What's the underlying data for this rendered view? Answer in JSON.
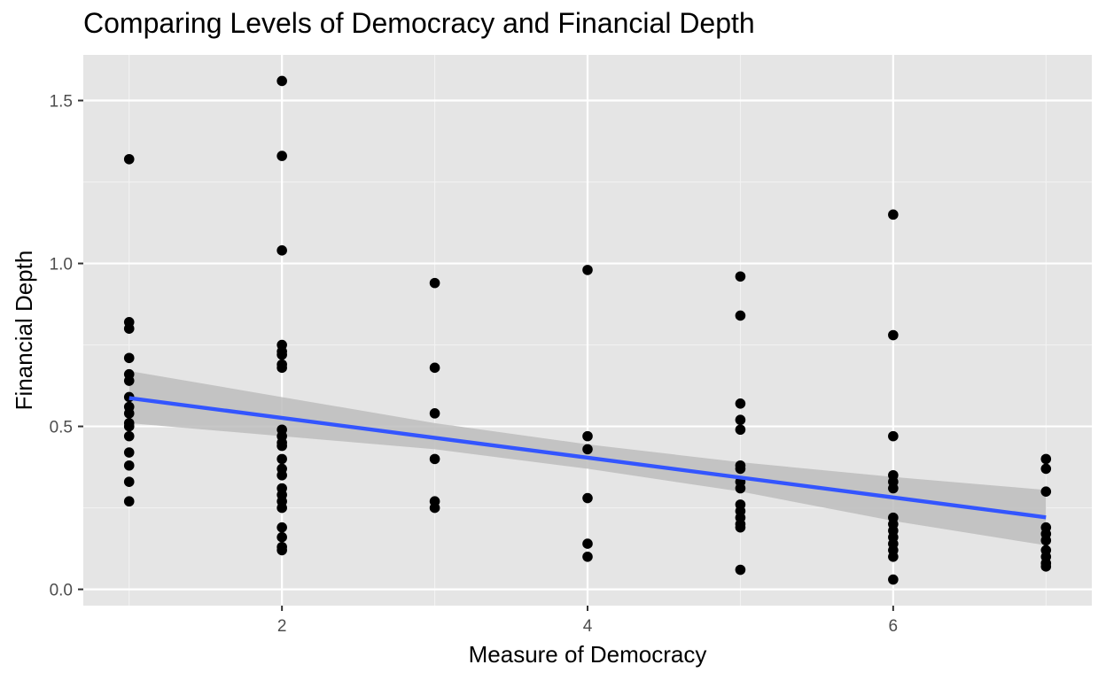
{
  "chart_data": {
    "type": "scatter",
    "title": "Comparing Levels of Democracy and Financial Depth",
    "xlabel": "Measure of Democracy",
    "ylabel": "Financial Depth",
    "xlim": [
      0.7,
      7.3
    ],
    "ylim": [
      -0.05,
      1.64
    ],
    "x_ticks": [
      2,
      4,
      6
    ],
    "x_tick_labels": [
      "2",
      "4",
      "6"
    ],
    "y_ticks": [
      0.0,
      0.5,
      1.0,
      1.5
    ],
    "y_tick_labels": [
      "0.0",
      "0.5",
      "1.0",
      "1.5"
    ],
    "grid": true,
    "colors": {
      "panel": "#e5e5e5",
      "grid_major": "#ffffff",
      "points": "#000000",
      "fit_line": "#3355ff",
      "ribbon": "#bdbdbd"
    },
    "points": [
      {
        "x": 1,
        "y": 1.32
      },
      {
        "x": 1,
        "y": 0.82
      },
      {
        "x": 1,
        "y": 0.8
      },
      {
        "x": 1,
        "y": 0.71
      },
      {
        "x": 1,
        "y": 0.66
      },
      {
        "x": 1,
        "y": 0.64
      },
      {
        "x": 1,
        "y": 0.59
      },
      {
        "x": 1,
        "y": 0.56
      },
      {
        "x": 1,
        "y": 0.54
      },
      {
        "x": 1,
        "y": 0.51
      },
      {
        "x": 1,
        "y": 0.5
      },
      {
        "x": 1,
        "y": 0.47
      },
      {
        "x": 1,
        "y": 0.42
      },
      {
        "x": 1,
        "y": 0.38
      },
      {
        "x": 1,
        "y": 0.33
      },
      {
        "x": 1,
        "y": 0.27
      },
      {
        "x": 2,
        "y": 1.56
      },
      {
        "x": 2,
        "y": 1.33
      },
      {
        "x": 2,
        "y": 1.04
      },
      {
        "x": 2,
        "y": 0.75
      },
      {
        "x": 2,
        "y": 0.73
      },
      {
        "x": 2,
        "y": 0.72
      },
      {
        "x": 2,
        "y": 0.69
      },
      {
        "x": 2,
        "y": 0.68
      },
      {
        "x": 2,
        "y": 0.49
      },
      {
        "x": 2,
        "y": 0.47
      },
      {
        "x": 2,
        "y": 0.45
      },
      {
        "x": 2,
        "y": 0.44
      },
      {
        "x": 2,
        "y": 0.4
      },
      {
        "x": 2,
        "y": 0.37
      },
      {
        "x": 2,
        "y": 0.35
      },
      {
        "x": 2,
        "y": 0.31
      },
      {
        "x": 2,
        "y": 0.29
      },
      {
        "x": 2,
        "y": 0.27
      },
      {
        "x": 2,
        "y": 0.25
      },
      {
        "x": 2,
        "y": 0.19
      },
      {
        "x": 2,
        "y": 0.16
      },
      {
        "x": 2,
        "y": 0.13
      },
      {
        "x": 2,
        "y": 0.12
      },
      {
        "x": 3,
        "y": 0.94
      },
      {
        "x": 3,
        "y": 0.68
      },
      {
        "x": 3,
        "y": 0.54
      },
      {
        "x": 3,
        "y": 0.4
      },
      {
        "x": 3,
        "y": 0.27
      },
      {
        "x": 3,
        "y": 0.25
      },
      {
        "x": 4,
        "y": 0.98
      },
      {
        "x": 4,
        "y": 0.47
      },
      {
        "x": 4,
        "y": 0.43
      },
      {
        "x": 4,
        "y": 0.28
      },
      {
        "x": 4,
        "y": 0.14
      },
      {
        "x": 4,
        "y": 0.1
      },
      {
        "x": 5,
        "y": 0.96
      },
      {
        "x": 5,
        "y": 0.84
      },
      {
        "x": 5,
        "y": 0.57
      },
      {
        "x": 5,
        "y": 0.52
      },
      {
        "x": 5,
        "y": 0.49
      },
      {
        "x": 5,
        "y": 0.38
      },
      {
        "x": 5,
        "y": 0.37
      },
      {
        "x": 5,
        "y": 0.33
      },
      {
        "x": 5,
        "y": 0.31
      },
      {
        "x": 5,
        "y": 0.26
      },
      {
        "x": 5,
        "y": 0.24
      },
      {
        "x": 5,
        "y": 0.22
      },
      {
        "x": 5,
        "y": 0.2
      },
      {
        "x": 5,
        "y": 0.19
      },
      {
        "x": 5,
        "y": 0.06
      },
      {
        "x": 6,
        "y": 1.15
      },
      {
        "x": 6,
        "y": 0.78
      },
      {
        "x": 6,
        "y": 0.47
      },
      {
        "x": 6,
        "y": 0.35
      },
      {
        "x": 6,
        "y": 0.33
      },
      {
        "x": 6,
        "y": 0.31
      },
      {
        "x": 6,
        "y": 0.22
      },
      {
        "x": 6,
        "y": 0.2
      },
      {
        "x": 6,
        "y": 0.18
      },
      {
        "x": 6,
        "y": 0.16
      },
      {
        "x": 6,
        "y": 0.14
      },
      {
        "x": 6,
        "y": 0.12
      },
      {
        "x": 6,
        "y": 0.1
      },
      {
        "x": 6,
        "y": 0.03
      },
      {
        "x": 7,
        "y": 0.4
      },
      {
        "x": 7,
        "y": 0.37
      },
      {
        "x": 7,
        "y": 0.3
      },
      {
        "x": 7,
        "y": 0.19
      },
      {
        "x": 7,
        "y": 0.17
      },
      {
        "x": 7,
        "y": 0.15
      },
      {
        "x": 7,
        "y": 0.12
      },
      {
        "x": 7,
        "y": 0.1
      },
      {
        "x": 7,
        "y": 0.08
      },
      {
        "x": 7,
        "y": 0.07
      }
    ],
    "fit_line": {
      "x": [
        1,
        7
      ],
      "y": [
        0.587,
        0.221
      ]
    },
    "confidence_band": {
      "x": [
        1,
        2,
        3,
        4,
        5,
        6,
        7
      ],
      "lower": [
        0.51,
        0.47,
        0.43,
        0.37,
        0.3,
        0.21,
        0.135
      ],
      "upper": [
        0.67,
        0.59,
        0.51,
        0.445,
        0.39,
        0.345,
        0.305
      ]
    }
  }
}
